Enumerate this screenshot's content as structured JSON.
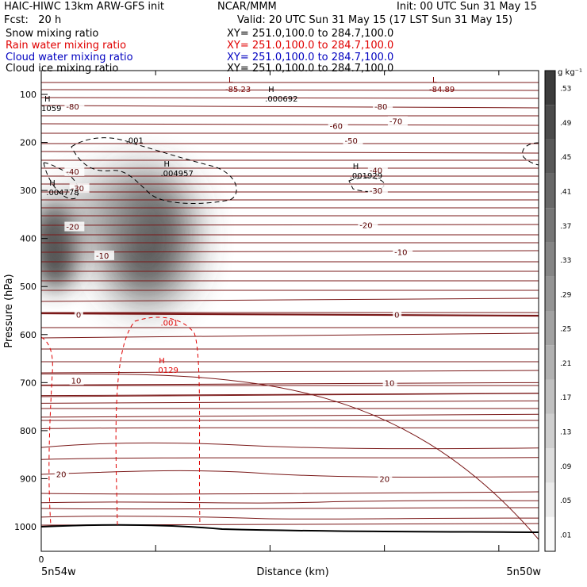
{
  "header": {
    "line1_left": "HAIC-HIWC 13km ARW-GFS init",
    "line1_mid": "NCAR/MMM",
    "line1_right": "Init: 00 UTC Sun 31 May 15",
    "line2_left": "Fcst:   20 h",
    "line2_right": "Valid: 20 UTC Sun 31 May 15 (17 LST Sun 31 May 15)",
    "fields": [
      {
        "name": "Snow mixing ratio",
        "xy": "XY= 251.0,100.0 to 284.7,100.0",
        "color": "#000000"
      },
      {
        "name": "Rain water mixing ratio",
        "xy": "XY= 251.0,100.0 to 284.7,100.0",
        "color": "#e00000"
      },
      {
        "name": "Cloud water mixing ratio",
        "xy": "XY= 251.0,100.0 to 284.7,100.0",
        "color": "#0000c0"
      },
      {
        "name": "Cloud ice mixing ratio",
        "xy": "XY= 251.0,100.0 to 284.7,100.0",
        "color": "#000000"
      }
    ]
  },
  "chart_data": {
    "type": "heatmap",
    "xlabel": "Distance (km)",
    "ylabel": "Pressure (hPa)",
    "x_tick_labels": [
      "0"
    ],
    "x_endpoint_labels": [
      "5n54w",
      "5n50w"
    ],
    "y_ticks": [
      100,
      200,
      300,
      400,
      500,
      600,
      700,
      800,
      900,
      1000
    ],
    "ylim": [
      1050,
      50
    ],
    "colorbar": {
      "unit": "g kg⁻¹",
      "labels": [
        ".01",
        ".05",
        ".09",
        ".13",
        ".17",
        ".21",
        ".25",
        ".29",
        ".33",
        ".37",
        ".41",
        ".45",
        ".49",
        ".53"
      ]
    },
    "temperature_contour_labels": [
      {
        "value": "-80",
        "x": 0.05,
        "p": 125
      },
      {
        "value": "-80",
        "x": 0.67,
        "p": 125
      },
      {
        "value": "-70",
        "x": 0.7,
        "p": 155
      },
      {
        "value": "-60",
        "x": 0.58,
        "p": 165
      },
      {
        "value": "-50",
        "x": 0.61,
        "p": 196
      },
      {
        "value": "-40",
        "x": 0.05,
        "p": 260
      },
      {
        "value": "-40",
        "x": 0.66,
        "p": 258
      },
      {
        "value": "-30",
        "x": 0.06,
        "p": 295
      },
      {
        "value": "-30",
        "x": 0.66,
        "p": 300
      },
      {
        "value": "-20",
        "x": 0.05,
        "p": 375
      },
      {
        "value": "-20",
        "x": 0.64,
        "p": 372
      },
      {
        "value": "-10",
        "x": 0.11,
        "p": 435
      },
      {
        "value": "-10",
        "x": 0.71,
        "p": 428
      },
      {
        "value": "0",
        "x": 0.07,
        "p": 558
      },
      {
        "value": "0",
        "x": 0.71,
        "p": 558
      },
      {
        "value": "10",
        "x": 0.06,
        "p": 695
      },
      {
        "value": "10",
        "x": 0.69,
        "p": 700
      },
      {
        "value": "20",
        "x": 0.03,
        "p": 890
      },
      {
        "value": "20",
        "x": 0.68,
        "p": 900
      }
    ],
    "extrema_labels": [
      {
        "kind": "L",
        "value": "-85.23",
        "x": 0.37,
        "p": 85,
        "color": "#7a0000"
      },
      {
        "kind": "L",
        "value": "-84.89",
        "x": 0.78,
        "p": 85,
        "color": "#7a0000"
      },
      {
        "kind": "H",
        "value": ".000692",
        "x": 0.45,
        "p": 105,
        "color": "#000000"
      },
      {
        "kind": "H",
        "value": "1059",
        "x": 0.0,
        "p": 125,
        "color": "#000000"
      },
      {
        "kind": "H",
        "value": ".004957",
        "x": 0.24,
        "p": 260,
        "color": "#000000"
      },
      {
        "kind": "H",
        "value": ".004778",
        "x": 0.01,
        "p": 300,
        "color": "#000000"
      },
      {
        "kind": "H",
        "value": ".001929",
        "x": 0.62,
        "p": 265,
        "color": "#000000"
      },
      {
        "kind": "H",
        "value": ".0129",
        "x": 0.23,
        "p": 670,
        "color": "#e00000"
      }
    ],
    "mixing_ratio_contour_labels": [
      {
        "value": ".001",
        "x": 0.17,
        "p": 195,
        "color": "#000000"
      },
      {
        "value": ".001",
        "x": 0.24,
        "p": 575,
        "color": "#e00000"
      }
    ]
  }
}
